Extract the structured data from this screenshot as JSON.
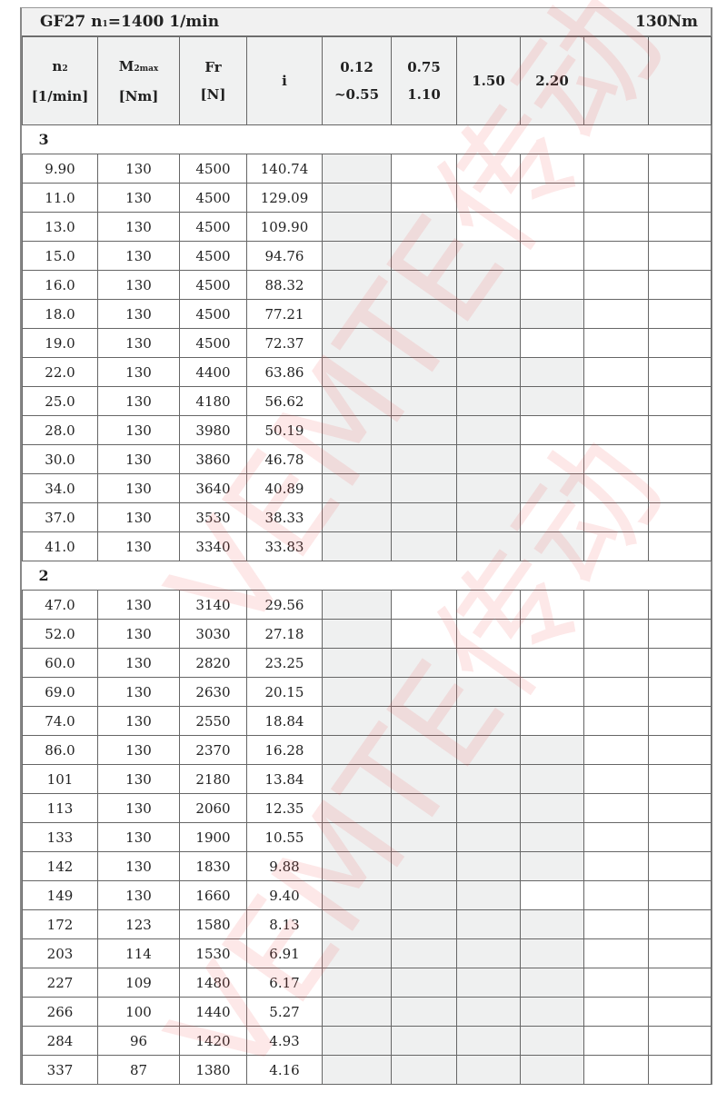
{
  "title": {
    "model": "GF27 n",
    "n1_sub": "1",
    "speed": "=1400 1/min",
    "torque": "130Nm"
  },
  "headers": [
    {
      "line1": "n",
      "sub1": "2",
      "line2": "[1/min]"
    },
    {
      "line1": "M",
      "sub1": "2max",
      "line2": "[Nm]"
    },
    {
      "line1": "Fr",
      "sub1": "",
      "line2": "[N]"
    },
    {
      "line1": "i",
      "sub1": "",
      "line2": ""
    },
    {
      "line1": "0.12",
      "sub1": "",
      "line2": "~0.55"
    },
    {
      "line1": "0.75",
      "sub1": "",
      "line2": "1.10"
    },
    {
      "line1": "1.50",
      "sub1": "",
      "line2": ""
    },
    {
      "line1": "2.20",
      "sub1": "",
      "line2": ""
    },
    {
      "line1": "",
      "sub1": "",
      "line2": ""
    },
    {
      "line1": "",
      "sub1": "",
      "line2": ""
    }
  ],
  "watermark": "VEMTE传动",
  "shade_color": "#eff0f0",
  "groups": [
    {
      "stage": "3",
      "rows": [
        {
          "n2": "9.90",
          "m2": "130",
          "fr": "4500",
          "i": "140.74",
          "shaded_columns": 1
        },
        {
          "n2": "11.0",
          "m2": "130",
          "fr": "4500",
          "i": "129.09",
          "shaded_columns": 1
        },
        {
          "n2": "13.0",
          "m2": "130",
          "fr": "4500",
          "i": "109.90",
          "shaded_columns": 2
        },
        {
          "n2": "15.0",
          "m2": "130",
          "fr": "4500",
          "i": "94.76",
          "shaded_columns": 3
        },
        {
          "n2": "16.0",
          "m2": "130",
          "fr": "4500",
          "i": "88.32",
          "shaded_columns": 3
        },
        {
          "n2": "18.0",
          "m2": "130",
          "fr": "4500",
          "i": "77.21",
          "shaded_columns": 4
        },
        {
          "n2": "19.0",
          "m2": "130",
          "fr": "4500",
          "i": "72.37",
          "shaded_columns": 3
        },
        {
          "n2": "22.0",
          "m2": "130",
          "fr": "4400",
          "i": "63.86",
          "shaded_columns": 4
        },
        {
          "n2": "25.0",
          "m2": "130",
          "fr": "4180",
          "i": "56.62",
          "shaded_columns": 4
        },
        {
          "n2": "28.0",
          "m2": "130",
          "fr": "3980",
          "i": "50.19",
          "shaded_columns": 3
        },
        {
          "n2": "30.0",
          "m2": "130",
          "fr": "3860",
          "i": "46.78",
          "shaded_columns": 3
        },
        {
          "n2": "34.0",
          "m2": "130",
          "fr": "3640",
          "i": "40.89",
          "shaded_columns": 4
        },
        {
          "n2": "37.0",
          "m2": "130",
          "fr": "3530",
          "i": "38.33",
          "shaded_columns": 3
        },
        {
          "n2": "41.0",
          "m2": "130",
          "fr": "3340",
          "i": "33.83",
          "shaded_columns": 4
        }
      ]
    },
    {
      "stage": "2",
      "rows": [
        {
          "n2": "47.0",
          "m2": "130",
          "fr": "3140",
          "i": "29.56",
          "shaded_columns": 1
        },
        {
          "n2": "52.0",
          "m2": "130",
          "fr": "3030",
          "i": "27.18",
          "shaded_columns": 1
        },
        {
          "n2": "60.0",
          "m2": "130",
          "fr": "2820",
          "i": "23.25",
          "shaded_columns": 2
        },
        {
          "n2": "69.0",
          "m2": "130",
          "fr": "2630",
          "i": "20.15",
          "shaded_columns": 3
        },
        {
          "n2": "74.0",
          "m2": "130",
          "fr": "2550",
          "i": "18.84",
          "shaded_columns": 3
        },
        {
          "n2": "86.0",
          "m2": "130",
          "fr": "2370",
          "i": "16.28",
          "shaded_columns": 4
        },
        {
          "n2": "101",
          "m2": "130",
          "fr": "2180",
          "i": "13.84",
          "shaded_columns": 4
        },
        {
          "n2": "113",
          "m2": "130",
          "fr": "2060",
          "i": "12.35",
          "shaded_columns": 4
        },
        {
          "n2": "133",
          "m2": "130",
          "fr": "1900",
          "i": "10.55",
          "shaded_columns": 4
        },
        {
          "n2": "142",
          "m2": "130",
          "fr": "1830",
          "i": "9.88",
          "shaded_columns": 4
        },
        {
          "n2": "149",
          "m2": "130",
          "fr": "1660",
          "i": "9.40",
          "shaded_columns": 3
        },
        {
          "n2": "172",
          "m2": "123",
          "fr": "1580",
          "i": "8.13",
          "shaded_columns": 4
        },
        {
          "n2": "203",
          "m2": "114",
          "fr": "1530",
          "i": "6.91",
          "shaded_columns": 4
        },
        {
          "n2": "227",
          "m2": "109",
          "fr": "1480",
          "i": "6.17",
          "shaded_columns": 4
        },
        {
          "n2": "266",
          "m2": "100",
          "fr": "1440",
          "i": "5.27",
          "shaded_columns": 4
        },
        {
          "n2": "284",
          "m2": "96",
          "fr": "1420",
          "i": "4.93",
          "shaded_columns": 4
        },
        {
          "n2": "337",
          "m2": "87",
          "fr": "1380",
          "i": "4.16",
          "shaded_columns": 4
        }
      ]
    }
  ]
}
